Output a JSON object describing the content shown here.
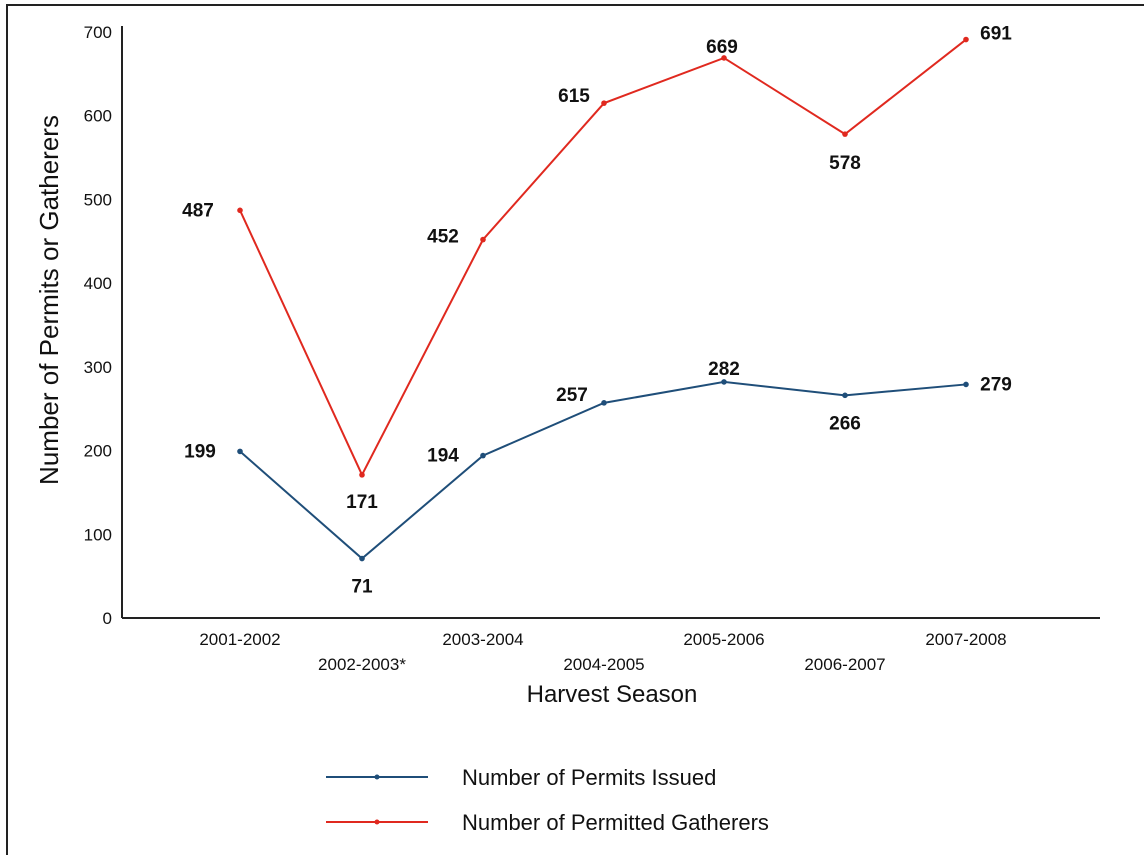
{
  "chart_data": {
    "type": "line",
    "categories": [
      "2001-2002",
      "2002-2003*",
      "2003-2004",
      "2004-2005",
      "2005-2006",
      "2006-2007",
      "2007-2008"
    ],
    "xlabel": "Harvest Season",
    "ylabel": "Number of Permits or Gatherers",
    "ylim": [
      0,
      700
    ],
    "yticks": [
      0,
      100,
      200,
      300,
      400,
      500,
      600,
      700
    ],
    "grid": false,
    "legend_position": "bottom",
    "series": [
      {
        "name": "Number of Permits Issued",
        "color": "#1f4e79",
        "values": [
          199,
          71,
          194,
          257,
          282,
          266,
          279
        ],
        "labels": [
          "199",
          "71",
          "194",
          "257",
          "282",
          "266",
          "279"
        ]
      },
      {
        "name": "Number of Permitted Gatherers",
        "color": "#e0291f",
        "values": [
          487,
          171,
          452,
          615,
          669,
          578,
          691
        ],
        "labels": [
          "487",
          "171",
          "452",
          "615",
          "669",
          "578",
          "691"
        ]
      }
    ]
  }
}
